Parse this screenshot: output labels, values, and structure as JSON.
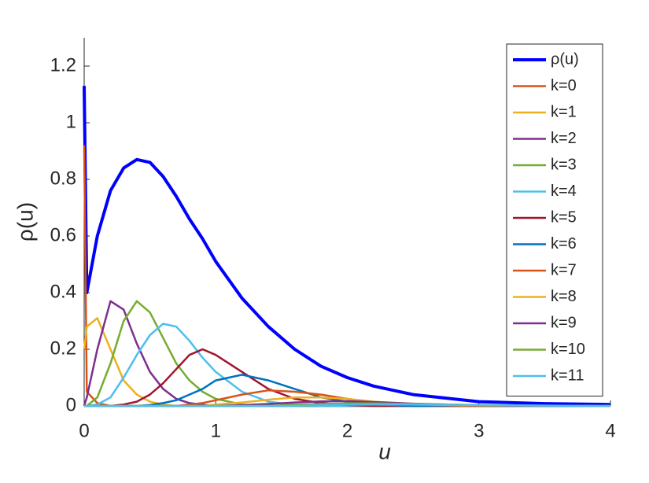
{
  "chart_data": {
    "type": "line",
    "xlabel": "u",
    "ylabel": "ρ(u)",
    "x": [
      0,
      0.02,
      0.1,
      0.2,
      0.3,
      0.4,
      0.5,
      0.6,
      0.7,
      0.8,
      0.9,
      1.0,
      1.2,
      1.4,
      1.6,
      1.8,
      2.0,
      2.2,
      2.5,
      3.0,
      3.5,
      4.0
    ],
    "xlim": [
      0,
      4
    ],
    "xticks": [
      0,
      1,
      2,
      3,
      4
    ],
    "ylim": [
      0,
      1.3
    ],
    "yticks": [
      0,
      0.2,
      0.4,
      0.6,
      0.8,
      1,
      1.2
    ],
    "grid": false,
    "legend": "upper right",
    "series": [
      {
        "name": "ρ(u)",
        "color": "#0000ff",
        "values": [
          1.13,
          0.4,
          0.6,
          0.76,
          0.84,
          0.87,
          0.86,
          0.81,
          0.74,
          0.66,
          0.59,
          0.51,
          0.38,
          0.28,
          0.2,
          0.14,
          0.1,
          0.07,
          0.04,
          0.015,
          0.008,
          0.005
        ]
      },
      {
        "name": "k=0",
        "color": "#d95319",
        "values": [
          0.92,
          0.05,
          0.01,
          0,
          0,
          0,
          0,
          0,
          0,
          0,
          0,
          0,
          0,
          0,
          0,
          0,
          0,
          0,
          0,
          0,
          0,
          0
        ]
      },
      {
        "name": "k=1",
        "color": "#edb120",
        "values": [
          0.2,
          0.28,
          0.31,
          0.2,
          0.09,
          0.04,
          0.015,
          0.005,
          0,
          0,
          0,
          0,
          0,
          0,
          0,
          0,
          0,
          0,
          0,
          0,
          0,
          0
        ]
      },
      {
        "name": "k=2",
        "color": "#7e2f8e",
        "values": [
          0,
          0.03,
          0.2,
          0.37,
          0.34,
          0.22,
          0.12,
          0.06,
          0.025,
          0.01,
          0.004,
          0,
          0,
          0,
          0,
          0,
          0,
          0,
          0,
          0,
          0,
          0
        ]
      },
      {
        "name": "k=3",
        "color": "#77ac30",
        "values": [
          0,
          0,
          0.03,
          0.15,
          0.3,
          0.37,
          0.33,
          0.24,
          0.15,
          0.09,
          0.05,
          0.025,
          0.005,
          0,
          0,
          0,
          0,
          0,
          0,
          0,
          0,
          0
        ]
      },
      {
        "name": "k=4",
        "color": "#4dbeee",
        "values": [
          0,
          0,
          0.005,
          0.03,
          0.1,
          0.18,
          0.25,
          0.29,
          0.28,
          0.23,
          0.17,
          0.12,
          0.05,
          0.015,
          0.004,
          0,
          0,
          0,
          0,
          0,
          0,
          0
        ]
      },
      {
        "name": "k=5",
        "color": "#a2142f",
        "values": [
          0,
          0,
          0,
          0,
          0.005,
          0.015,
          0.04,
          0.08,
          0.13,
          0.18,
          0.2,
          0.18,
          0.12,
          0.06,
          0.025,
          0.01,
          0.003,
          0,
          0,
          0,
          0,
          0
        ]
      },
      {
        "name": "k=6",
        "color": "#0072bd",
        "values": [
          0,
          0,
          0,
          0,
          0,
          0,
          0.003,
          0.01,
          0.02,
          0.04,
          0.06,
          0.09,
          0.11,
          0.09,
          0.06,
          0.03,
          0.015,
          0.005,
          0,
          0,
          0,
          0
        ]
      },
      {
        "name": "k=7",
        "color": "#d95319",
        "values": [
          0,
          0,
          0,
          0,
          0,
          0,
          0,
          0,
          0,
          0.005,
          0.01,
          0.02,
          0.04,
          0.055,
          0.05,
          0.04,
          0.025,
          0.012,
          0.004,
          0,
          0,
          0
        ]
      },
      {
        "name": "k=8",
        "color": "#edb120",
        "values": [
          0,
          0,
          0,
          0,
          0,
          0,
          0,
          0,
          0,
          0,
          0,
          0.005,
          0.012,
          0.022,
          0.03,
          0.03,
          0.025,
          0.015,
          0.006,
          0.001,
          0,
          0
        ]
      },
      {
        "name": "k=9",
        "color": "#7e2f8e",
        "values": [
          0,
          0,
          0,
          0,
          0,
          0,
          0,
          0,
          0,
          0,
          0,
          0,
          0.003,
          0.007,
          0.012,
          0.016,
          0.017,
          0.014,
          0.008,
          0.002,
          0,
          0
        ]
      },
      {
        "name": "k=10",
        "color": "#77ac30",
        "values": [
          0,
          0,
          0,
          0,
          0,
          0,
          0,
          0,
          0,
          0,
          0,
          0,
          0,
          0,
          0.004,
          0.007,
          0.009,
          0.009,
          0.007,
          0.003,
          0.001,
          0
        ]
      },
      {
        "name": "k=11",
        "color": "#4dbeee",
        "values": [
          0,
          0,
          0,
          0,
          0,
          0,
          0,
          0,
          0,
          0,
          0,
          0,
          0,
          0,
          0,
          0.003,
          0.004,
          0.005,
          0.005,
          0.003,
          0.001,
          0
        ]
      }
    ]
  }
}
